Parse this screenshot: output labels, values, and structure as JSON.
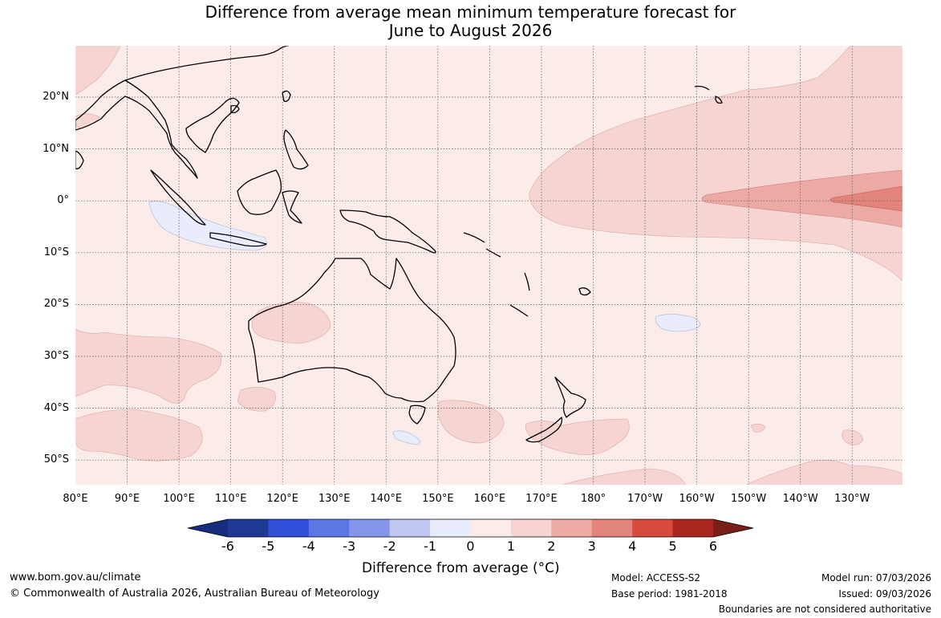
{
  "title_line1": "Difference from average mean minimum temperature forecast for",
  "title_line2": "June to August 2026",
  "lat_labels": [
    "20°N",
    "10°N",
    "0°",
    "10°S",
    "20°S",
    "30°S",
    "40°S",
    "50°S"
  ],
  "lon_labels": [
    "80°E",
    "90°E",
    "100°E",
    "110°E",
    "120°E",
    "130°E",
    "140°E",
    "150°E",
    "160°E",
    "170°E",
    "180°",
    "170°W",
    "160°W",
    "150°W",
    "140°W",
    "130°W"
  ],
  "colorbar": {
    "ticks": [
      "-6",
      "-5",
      "-4",
      "-3",
      "-2",
      "-1",
      "0",
      "1",
      "2",
      "3",
      "4",
      "5",
      "6"
    ],
    "colors": [
      "#1f3a93",
      "#2f4fd6",
      "#5a77e4",
      "#8595ea",
      "#bfc7f2",
      "#e9ecfb",
      "#fbecea",
      "#f5d4d2",
      "#ecaaa5",
      "#e2847c",
      "#d84a3c",
      "#a9271f"
    ],
    "low_extend": "#162d7d",
    "high_extend": "#7a1e17",
    "label": "Difference from average (°C)"
  },
  "footer": {
    "website": "www.bom.gov.au/climate",
    "copyright": "© Commonwealth of Australia 2026, Australian Bureau of Meteorology",
    "model": "Model: ACCESS-S2",
    "base_period": "Base period: 1981-2018",
    "model_run": "Model run: 07/03/2026",
    "issued": "Issued: 09/03/2026",
    "boundaries": "Boundaries are not considered authoritative"
  }
}
